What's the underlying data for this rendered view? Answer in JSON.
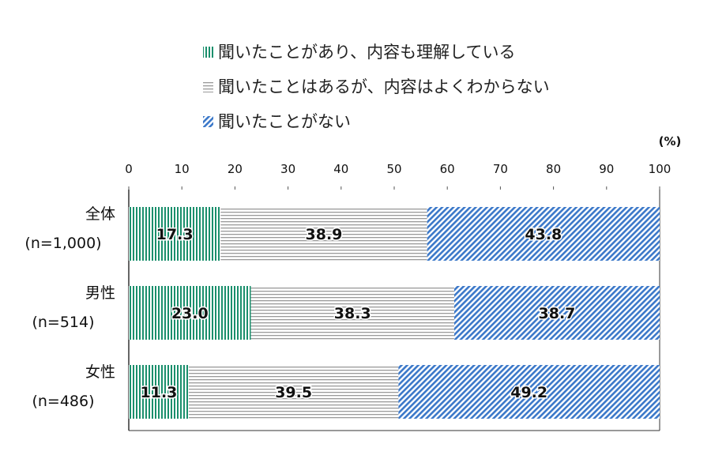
{
  "chart_data": {
    "type": "bar",
    "orientation": "horizontal",
    "stacked": true,
    "unit_label": "(%)",
    "xlim": [
      0,
      100
    ],
    "xticks": [
      0,
      10,
      20,
      30,
      40,
      50,
      60,
      70,
      80,
      90,
      100
    ],
    "categories": [
      {
        "name": "全体",
        "n": "(n=1,000)"
      },
      {
        "name": "男性",
        "n": "(n=514)"
      },
      {
        "name": "女性",
        "n": "(n=486)"
      }
    ],
    "series": [
      {
        "name": "聞いたことがあり、内容も理解している",
        "values": [
          17.3,
          23.0,
          11.3
        ],
        "labels": [
          "17.3",
          "23.0",
          "11.3"
        ],
        "color": "#1a8f6c",
        "pattern": "vertical-lines"
      },
      {
        "name": "聞いたことはあるが、内容はよくわからない",
        "values": [
          38.9,
          38.3,
          39.5
        ],
        "labels": [
          "38.9",
          "38.3",
          "39.5"
        ],
        "color": "#9a9a9a",
        "pattern": "horizontal-lines"
      },
      {
        "name": "聞いたことがない",
        "values": [
          43.8,
          38.7,
          49.2
        ],
        "labels": [
          "43.8",
          "38.7",
          "49.2"
        ],
        "color": "#3b78c9",
        "pattern": "diagonal-lines"
      }
    ],
    "legend_position": "top",
    "grid": false
  }
}
